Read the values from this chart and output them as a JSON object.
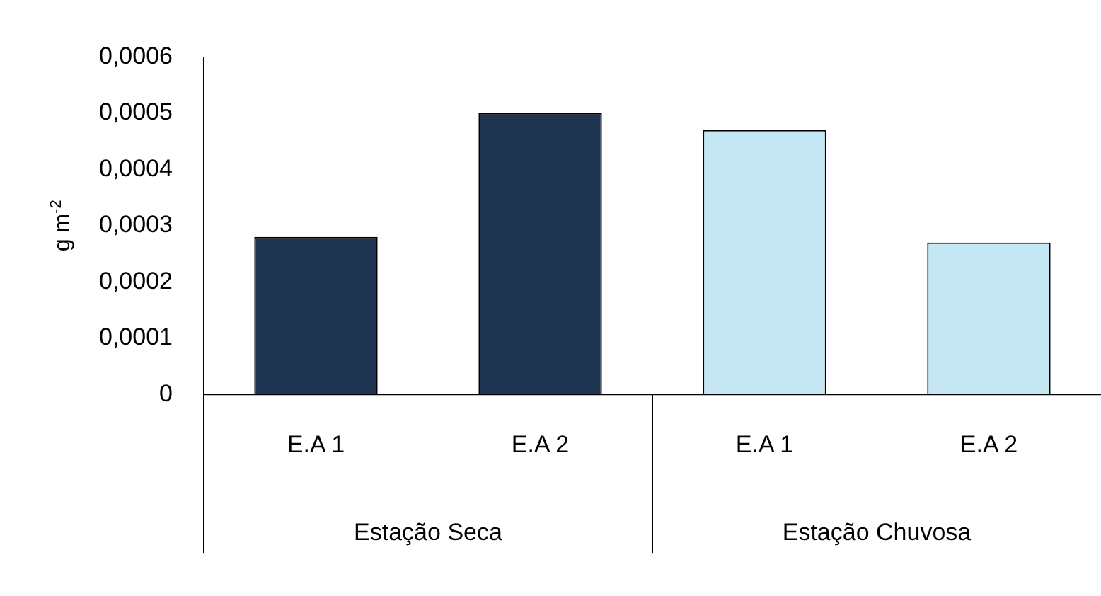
{
  "chart_data": {
    "type": "bar",
    "ylabel": "g m$^{-2}$",
    "categories": [
      "E.A 1",
      "E.A 2",
      "E.A 1",
      "E.A 2"
    ],
    "values": [
      0.00028,
      0.0005,
      0.00047,
      0.00027
    ],
    "colors": [
      "#1f3450",
      "#1f3450",
      "#c5e7f3",
      "#c5e7f3"
    ],
    "ylim": [
      0,
      0.0006
    ],
    "yticks": [
      0,
      {
        "value": 0.0001,
        "label": "0,0001"
      },
      {
        "value": 0.0002,
        "label": "0,0002"
      },
      {
        "value": 0.0003,
        "label": "0,0003"
      },
      {
        "value": 0.0004,
        "label": "0,0004"
      },
      {
        "value": 0.0005,
        "label": "0,0005"
      },
      {
        "value": 0.0006,
        "label": "0,0006"
      }
    ],
    "annotations": [
      "Estação Seca",
      "Estação Chuvosa"
    ],
    "grid": false,
    "legend": false
  }
}
